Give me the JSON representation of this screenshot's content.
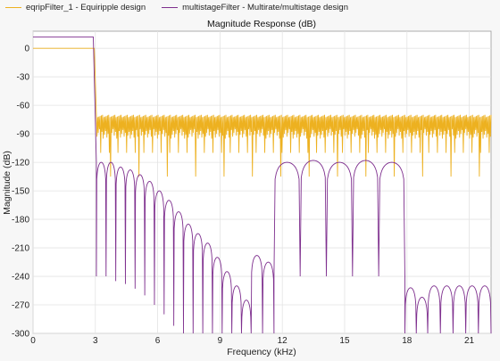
{
  "legend": {
    "items": [
      {
        "label": "eqripFilter_1 - Equiripple design",
        "color": "#EDB120"
      },
      {
        "label": "multistageFilter - Multirate/multistage design",
        "color": "#7E2F8E"
      }
    ]
  },
  "chart_data": {
    "type": "line",
    "title": "Magnitude Response (dB)",
    "xlabel": "Frequency (kHz)",
    "ylabel": "Magnitude (dB)",
    "xlim": [
      0,
      22.05
    ],
    "ylim": [
      -300,
      18
    ],
    "xticks": [
      0,
      3,
      6,
      9,
      12,
      15,
      18,
      21
    ],
    "xtick_labels": [
      "0",
      "3",
      "6",
      "9",
      "12",
      "15",
      "18",
      "21"
    ],
    "yticks": [
      0,
      -30,
      -60,
      -90,
      -120,
      -150,
      -180,
      -210,
      -240,
      -270,
      -300
    ],
    "ytick_labels": [
      "0",
      "-30",
      "-60",
      "-90",
      "-120",
      "-150",
      "-180",
      "-210",
      "-240",
      "-270",
      "-300"
    ],
    "grid": true,
    "legend_position": "top",
    "series": [
      {
        "name": "eqripFilter_1 - Equiripple design",
        "color": "#EDB120",
        "passband": {
          "x": [
            0,
            2.95
          ],
          "y": 0
        },
        "transition": {
          "x": [
            2.95,
            3.05
          ],
          "y": [
            0,
            -70
          ]
        },
        "stopband": {
          "x": [
            3.05,
            22.05
          ],
          "ripple_top": -70,
          "ripple_bottom_typical": -95,
          "ripple_bottom_min": -135
        }
      },
      {
        "name": "multistageFilter - Multirate/multistage design",
        "color": "#7E2F8E",
        "passband": {
          "x": [
            0,
            2.9
          ],
          "y": 12
        },
        "transition": {
          "x": [
            2.9,
            3.05
          ],
          "y": [
            12,
            -120
          ]
        },
        "lobe_regions": [
          {
            "x": [
              3.05,
              10.5
            ],
            "peaks": [
              -120,
              -120,
              -125,
              -128,
              -133,
              -140,
              -150,
              -160,
              -172,
              -185,
              -195,
              -205,
              -220,
              -235,
              -250,
              -265
            ]
          },
          {
            "x": [
              10.5,
              11.6
            ],
            "peaks": [
              -218,
              -225
            ]
          },
          {
            "x": [
              11.6,
              17.9
            ],
            "peaks": [
              -120,
              -118,
              -120,
              -118,
              -120
            ]
          },
          {
            "x": [
              17.9,
              19.0
            ],
            "peaks": [
              -252,
              -262
            ]
          },
          {
            "x": [
              19.0,
              22.05
            ],
            "peaks": [
              -250,
              -250,
              -250,
              -250,
              -250
            ]
          }
        ]
      }
    ]
  }
}
